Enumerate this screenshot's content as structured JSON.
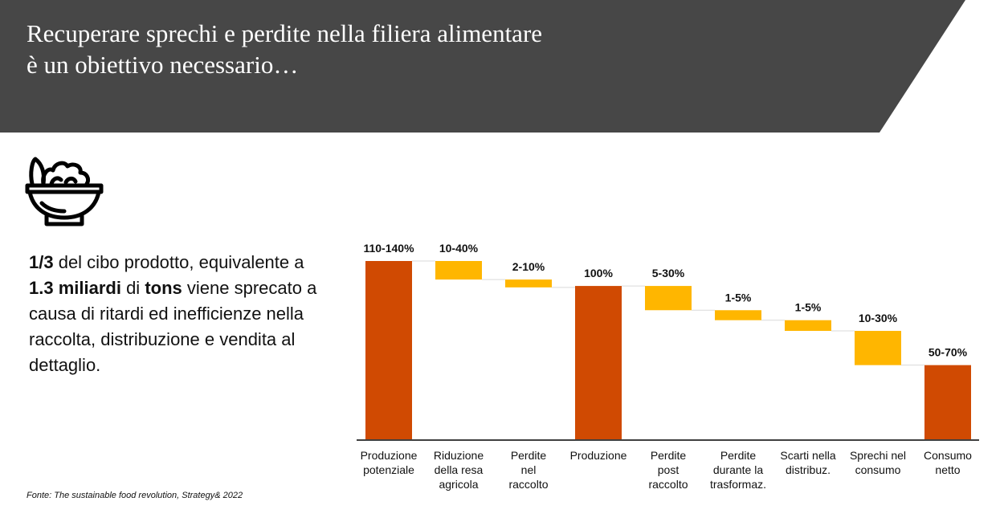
{
  "header": {
    "title_line1": "Recuperare sprechi e perdite nella filiera alimentare",
    "title_line2": "è un obiettivo necessario…",
    "banner_color": "#474747"
  },
  "icon": {
    "name": "food-bowl-icon"
  },
  "stat": {
    "p1": "1/3",
    "p2": " del cibo prodotto, equivalente a ",
    "p3": "1.3 miliardi",
    "p4": " di ",
    "p5": "tons",
    "p6": " viene sprecato a causa di ritardi ed inefficienze nella raccolta, distribuzione e vendita al dettaglio."
  },
  "source": "Fonte: The sustainable food revolution, Strategy& 2022",
  "colors": {
    "total": "#D04A02",
    "step": "#FFB600",
    "connector": "#D9D9D9",
    "axis": "#000000"
  },
  "chart_data": {
    "type": "bar",
    "subtype": "waterfall",
    "title": "",
    "xlabel": "",
    "ylabel": "",
    "y_axis_shown": false,
    "grid": false,
    "ylim": [
      0,
      125
    ],
    "categories": [
      [
        "Produzione",
        "potenziale"
      ],
      [
        "Riduzione",
        "della resa",
        "agricola"
      ],
      [
        "Perdite",
        "nel",
        "raccolto"
      ],
      [
        "Produzione"
      ],
      [
        "Perdite",
        "post",
        "raccolto"
      ],
      [
        "Perdite",
        "durante la",
        "trasformaz."
      ],
      [
        "Scarti nella",
        "distribuz."
      ],
      [
        "Sprechi nel",
        "consumo"
      ],
      [
        "Consumo",
        "netto"
      ]
    ],
    "bars": [
      {
        "kind": "total",
        "start": 0,
        "end": 125,
        "label": "110-140%"
      },
      {
        "kind": "step",
        "start": 125,
        "end": 112,
        "label": "10-40%"
      },
      {
        "kind": "step",
        "start": 112,
        "end": 106.5,
        "label": "2-10%"
      },
      {
        "kind": "total",
        "start": 0,
        "end": 107.5,
        "label": "100%"
      },
      {
        "kind": "step",
        "start": 107.5,
        "end": 90.5,
        "label": "5-30%"
      },
      {
        "kind": "step",
        "start": 90.5,
        "end": 83.5,
        "label": "1-5%"
      },
      {
        "kind": "step",
        "start": 83.5,
        "end": 76,
        "label": "1-5%"
      },
      {
        "kind": "step",
        "start": 76,
        "end": 52,
        "label": "10-30%"
      },
      {
        "kind": "total",
        "start": 0,
        "end": 52,
        "label": "50-70%"
      }
    ]
  }
}
